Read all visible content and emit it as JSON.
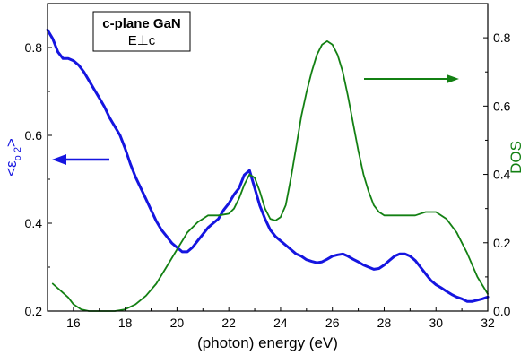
{
  "chart_data": {
    "type": "line",
    "annotation": {
      "line1": "c-plane GaN",
      "line2": "E⊥c"
    },
    "xlabel": "(photon) energy (eV)",
    "ylabel_left": {
      "base": "<ε",
      "sub": "o 2",
      "close": ">"
    },
    "ylabel_right": "DOS",
    "xlim": [
      15,
      32
    ],
    "ylim_left": [
      0.2,
      0.9
    ],
    "ylim_right": [
      0,
      0.9
    ],
    "xticks": [
      16,
      18,
      20,
      22,
      24,
      26,
      28,
      30,
      32
    ],
    "yticks_left": [
      0.2,
      0.4,
      0.6,
      0.8
    ],
    "yticks_right": [
      0.0,
      0.2,
      0.4,
      0.6,
      0.8
    ],
    "colors": {
      "left_series": "#1515e0",
      "right_series": "#138013",
      "axes": "#000000"
    },
    "series": [
      {
        "axis": "left",
        "x": [
          15.0,
          15.2,
          15.4,
          15.6,
          15.8,
          16.0,
          16.2,
          16.4,
          16.6,
          16.8,
          17.0,
          17.2,
          17.4,
          17.6,
          17.8,
          18.0,
          18.2,
          18.4,
          18.6,
          18.8,
          19.0,
          19.2,
          19.4,
          19.6,
          19.8,
          20.0,
          20.2,
          20.4,
          20.6,
          20.8,
          21.0,
          21.2,
          21.4,
          21.6,
          21.8,
          22.0,
          22.2,
          22.4,
          22.6,
          22.8,
          23.0,
          23.2,
          23.4,
          23.6,
          23.8,
          24.0,
          24.2,
          24.4,
          24.6,
          24.8,
          25.0,
          25.2,
          25.4,
          25.6,
          25.8,
          26.0,
          26.2,
          26.4,
          26.6,
          26.8,
          27.0,
          27.2,
          27.4,
          27.6,
          27.8,
          28.0,
          28.2,
          28.4,
          28.6,
          28.8,
          29.0,
          29.2,
          29.4,
          29.6,
          29.8,
          30.0,
          30.2,
          30.4,
          30.6,
          30.8,
          31.0,
          31.2,
          31.4,
          31.6,
          31.8,
          32.0
        ],
        "y": [
          0.84,
          0.82,
          0.79,
          0.775,
          0.775,
          0.77,
          0.76,
          0.745,
          0.725,
          0.705,
          0.685,
          0.665,
          0.64,
          0.62,
          0.6,
          0.57,
          0.535,
          0.505,
          0.48,
          0.455,
          0.43,
          0.405,
          0.385,
          0.37,
          0.355,
          0.345,
          0.335,
          0.335,
          0.345,
          0.36,
          0.375,
          0.39,
          0.4,
          0.41,
          0.43,
          0.445,
          0.465,
          0.48,
          0.51,
          0.52,
          0.48,
          0.44,
          0.41,
          0.385,
          0.37,
          0.36,
          0.35,
          0.34,
          0.33,
          0.325,
          0.317,
          0.313,
          0.31,
          0.312,
          0.318,
          0.325,
          0.328,
          0.33,
          0.325,
          0.318,
          0.312,
          0.305,
          0.3,
          0.295,
          0.297,
          0.305,
          0.315,
          0.325,
          0.33,
          0.33,
          0.325,
          0.315,
          0.3,
          0.285,
          0.27,
          0.26,
          0.253,
          0.245,
          0.238,
          0.232,
          0.228,
          0.222,
          0.222,
          0.225,
          0.228,
          0.232
        ]
      },
      {
        "axis": "right",
        "x": [
          15.2,
          15.5,
          15.8,
          16.0,
          16.3,
          16.6,
          17.0,
          17.3,
          17.6,
          18.0,
          18.4,
          18.8,
          19.2,
          19.6,
          20.0,
          20.4,
          20.8,
          21.2,
          21.6,
          22.0,
          22.2,
          22.4,
          22.6,
          22.8,
          23.0,
          23.2,
          23.4,
          23.6,
          23.8,
          24.0,
          24.2,
          24.4,
          24.6,
          24.8,
          25.0,
          25.2,
          25.4,
          25.6,
          25.8,
          26.0,
          26.2,
          26.4,
          26.6,
          26.8,
          27.0,
          27.2,
          27.4,
          27.6,
          27.8,
          28.0,
          28.4,
          28.8,
          29.2,
          29.6,
          30.0,
          30.4,
          30.8,
          31.2,
          31.6,
          32.0
        ],
        "y": [
          0.08,
          0.06,
          0.04,
          0.02,
          0.005,
          0.0,
          0.0,
          0.0,
          0.0,
          0.005,
          0.02,
          0.045,
          0.08,
          0.13,
          0.18,
          0.23,
          0.26,
          0.28,
          0.28,
          0.285,
          0.3,
          0.33,
          0.37,
          0.4,
          0.39,
          0.35,
          0.3,
          0.27,
          0.265,
          0.275,
          0.31,
          0.39,
          0.48,
          0.57,
          0.64,
          0.7,
          0.75,
          0.78,
          0.79,
          0.78,
          0.75,
          0.7,
          0.63,
          0.55,
          0.47,
          0.4,
          0.35,
          0.31,
          0.29,
          0.28,
          0.28,
          0.28,
          0.28,
          0.29,
          0.29,
          0.27,
          0.23,
          0.17,
          0.1,
          0.05
        ]
      }
    ],
    "arrows": [
      {
        "points_to": "left",
        "color": "#1515e0"
      },
      {
        "points_to": "right",
        "color": "#138013"
      }
    ]
  }
}
